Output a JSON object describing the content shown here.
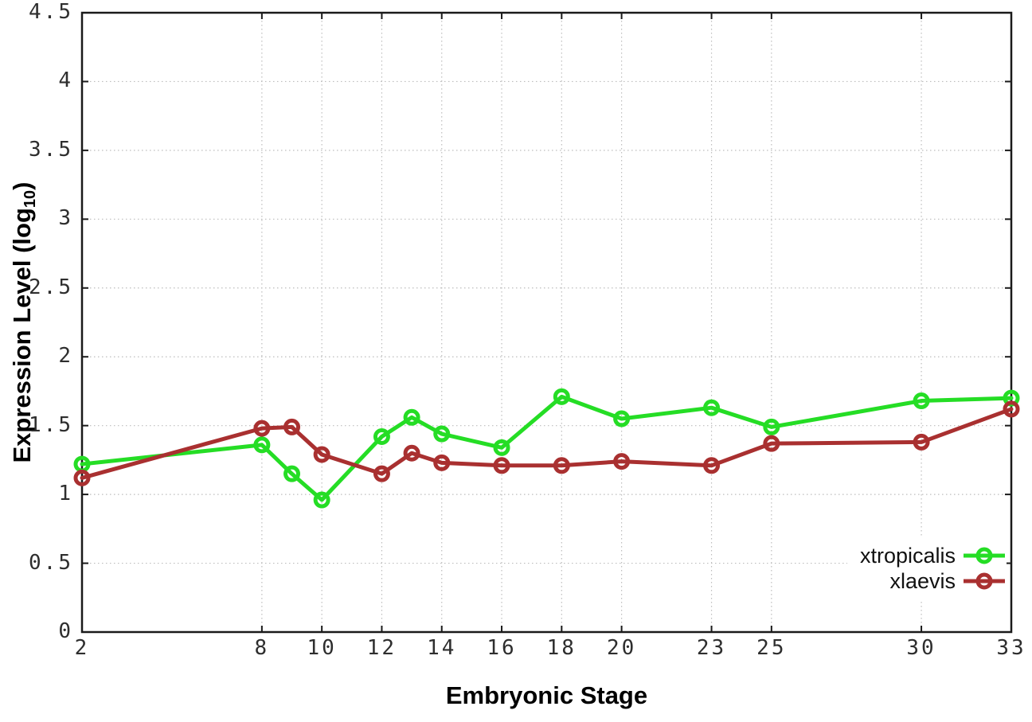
{
  "chart_data": {
    "type": "line",
    "title": "",
    "xlabel": "Embryonic Stage",
    "ylabel": "Expression Level (log10)",
    "ylabel_parts": {
      "prefix": "Expression Level (log",
      "sub": "10",
      "suffix": ")"
    },
    "xlim": [
      2,
      33
    ],
    "ylim": [
      0,
      4.5
    ],
    "x_ticks": [
      2,
      8,
      10,
      12,
      14,
      16,
      18,
      20,
      23,
      25,
      30,
      33
    ],
    "y_ticks": [
      0,
      0.5,
      1,
      1.5,
      2,
      2.5,
      3,
      3.5,
      4,
      4.5
    ],
    "grid": true,
    "legend_position": "bottom-right",
    "x": [
      2,
      8,
      9,
      10,
      12,
      13,
      14,
      16,
      18,
      20,
      23,
      25,
      30,
      33
    ],
    "series": [
      {
        "name": "xtropicalis",
        "color": "#25dd25",
        "marker": "open-circle",
        "values": [
          1.22,
          1.36,
          1.15,
          0.96,
          1.42,
          1.56,
          1.44,
          1.34,
          1.71,
          1.55,
          1.63,
          1.49,
          1.68,
          1.7
        ]
      },
      {
        "name": "xlaevis",
        "color": "#a93030",
        "marker": "open-circle",
        "values": [
          1.12,
          1.48,
          1.49,
          1.29,
          1.15,
          1.3,
          1.23,
          1.21,
          1.21,
          1.24,
          1.21,
          1.37,
          1.38,
          1.62
        ]
      }
    ],
    "style": {
      "background": "#ffffff",
      "grid_color": "#bdbdbd",
      "border_color": "#1a1a1a",
      "tick_label_color": "#2e2e2e"
    }
  }
}
